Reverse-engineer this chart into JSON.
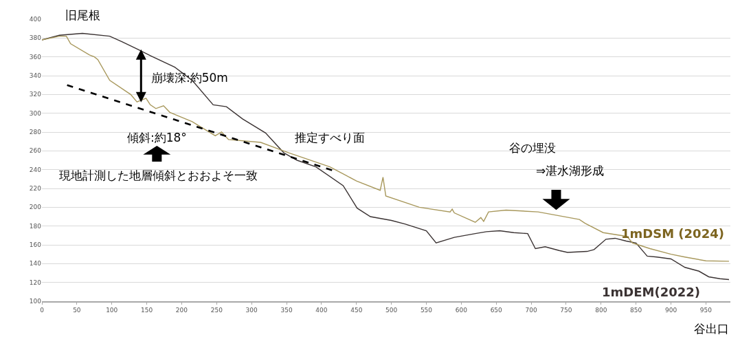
{
  "chart_data": {
    "type": "line",
    "xlabel": "谷出口",
    "xlim": [
      0,
      985
    ],
    "xticks": [
      0,
      50,
      100,
      150,
      200,
      250,
      300,
      350,
      400,
      450,
      500,
      550,
      600,
      650,
      700,
      750,
      800,
      850,
      900,
      950
    ],
    "ylim": [
      100,
      400
    ],
    "yticks": [
      100,
      120,
      140,
      160,
      180,
      200,
      220,
      240,
      260,
      280,
      300,
      320,
      340,
      360,
      380,
      400
    ],
    "grid": "y",
    "legend": false,
    "marker": "none",
    "series": [
      {
        "name": "1mDEM(2022)",
        "color": "#3a3232",
        "x": [
          0,
          25,
          58,
          97,
          115,
          137,
          156,
          190,
          215,
          245,
          264,
          287,
          320,
          346,
          365,
          392,
          431,
          451,
          470,
          500,
          520,
          550,
          564,
          590,
          620,
          636,
          655,
          675,
          695,
          706,
          720,
          740,
          752,
          780,
          790,
          807,
          820,
          836,
          850,
          866,
          880,
          900,
          920,
          940,
          954,
          970,
          983
        ],
        "values": [
          378,
          383,
          385,
          382,
          376,
          368,
          361,
          349,
          335,
          309,
          307,
          294,
          279,
          258,
          250,
          243,
          223,
          199,
          190,
          186,
          182,
          175,
          162,
          168,
          172,
          174,
          175,
          173,
          172,
          156,
          158,
          154,
          152,
          153,
          155,
          166,
          167,
          164,
          162,
          148,
          147,
          145,
          136,
          132,
          126,
          124,
          123
        ]
      },
      {
        "name": "1mDSM (2024)",
        "color": "#a8985c",
        "x": [
          0,
          25,
          35,
          41,
          68,
          75,
          80,
          97,
          127,
          136,
          149,
          155,
          163,
          174,
          183,
          215,
          248,
          257,
          267,
          313,
          353,
          412,
          450,
          484,
          488,
          492,
          540,
          584,
          587,
          590,
          620,
          628,
          632,
          639,
          664,
          710,
          769,
          777,
          803,
          837,
          845,
          870,
          900,
          920,
          950,
          983
        ],
        "values": [
          378,
          382,
          382,
          374,
          362,
          360,
          357,
          335,
          320,
          312,
          316,
          309,
          305,
          308,
          301,
          291,
          276,
          280,
          272,
          269,
          258,
          243,
          228,
          218,
          232,
          212,
          200,
          195,
          198,
          194,
          184,
          189,
          185,
          195,
          197,
          195,
          187,
          183,
          173,
          169,
          162,
          156,
          150,
          147,
          143,
          142.5
        ]
      },
      {
        "type": "line",
        "line_style": "dashed",
        "color": "#000000",
        "x": [
          36,
          417
        ],
        "values": [
          330,
          239
        ]
      }
    ],
    "annotations": [
      "旧尾根",
      "崩壊深:約50m",
      "傾斜:約18°",
      "現地計測した地層傾斜とおおよそ一致",
      "推定すべり面",
      "谷の埋没",
      "⇒湛水湖形成"
    ]
  }
}
